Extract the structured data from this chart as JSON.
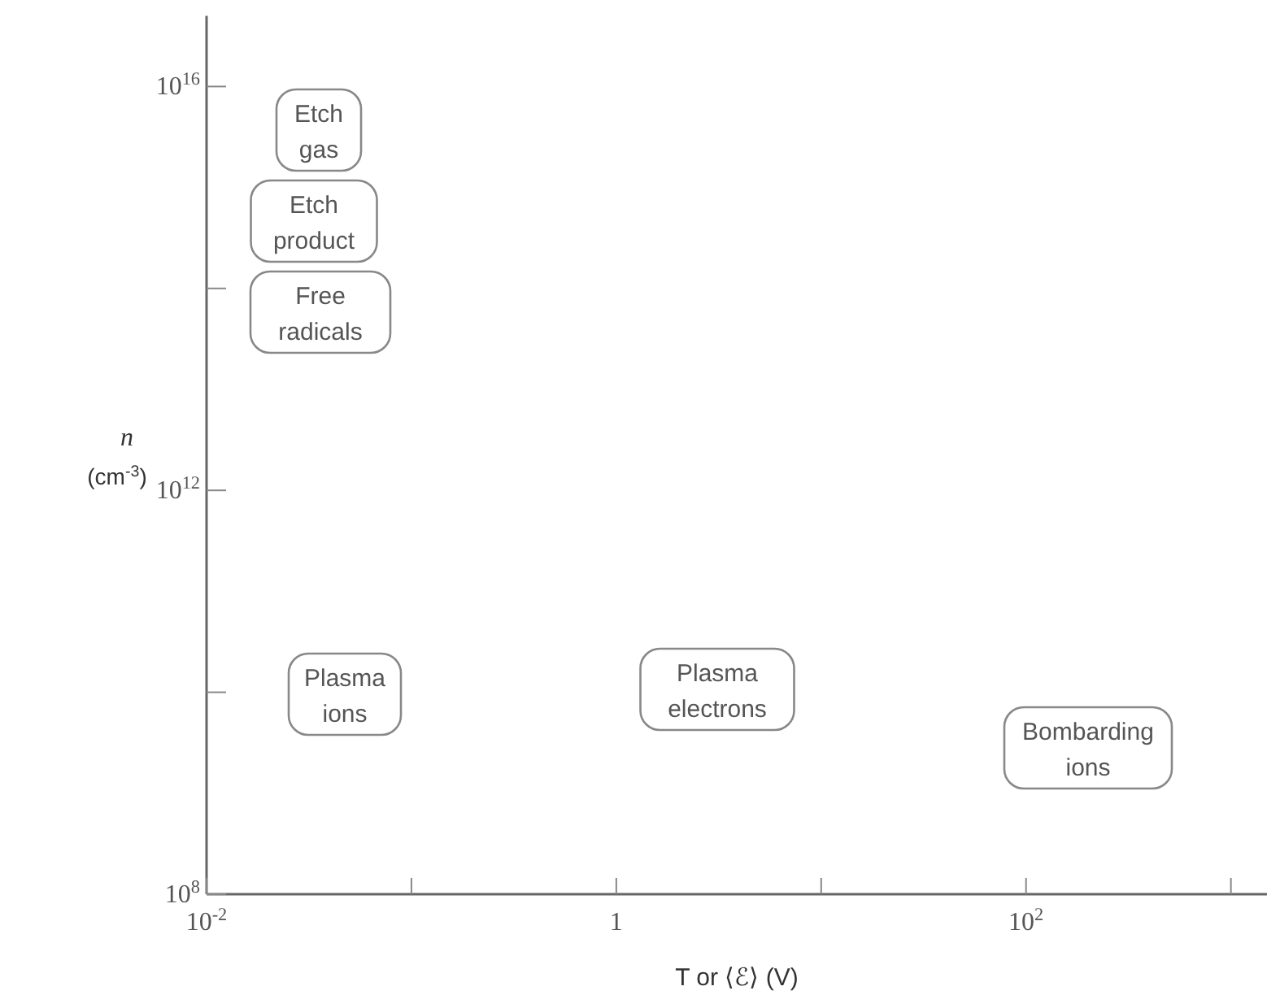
{
  "chart_data": {
    "type": "scatter",
    "xlabel": "T or ⟨ℰ⟩ (V)",
    "ylabel": "n (cm$^{-3}$)",
    "log": "xy",
    "xlim": [
      0.01,
      1500
    ],
    "ylim": [
      100000000.0,
      5e+16
    ],
    "xticks": [
      {
        "value": 0.01,
        "label": "10$^{-2}$"
      },
      {
        "value": 0.1,
        "label": null
      },
      {
        "value": 1,
        "label": "1"
      },
      {
        "value": 10,
        "label": null
      },
      {
        "value": 100,
        "label": "10$^{2}$"
      },
      {
        "value": 1000,
        "label": null
      }
    ],
    "yticks": [
      {
        "value": 100000000.0,
        "label": "10$^{8}$"
      },
      {
        "value": 10000000000.0,
        "label": null
      },
      {
        "value": 1000000000000.0,
        "label": "10$^{12}$"
      },
      {
        "value": 100000000000000.0,
        "label": null
      },
      {
        "value": 1e+16,
        "label": "10$^{16}$"
      }
    ],
    "annotations": [
      "Etch\ngas",
      "Etch\nproduct",
      "Free\nradicals",
      "Plasma\nions",
      "Plasma\nelectrons",
      "Bombarding\nions"
    ]
  }
}
